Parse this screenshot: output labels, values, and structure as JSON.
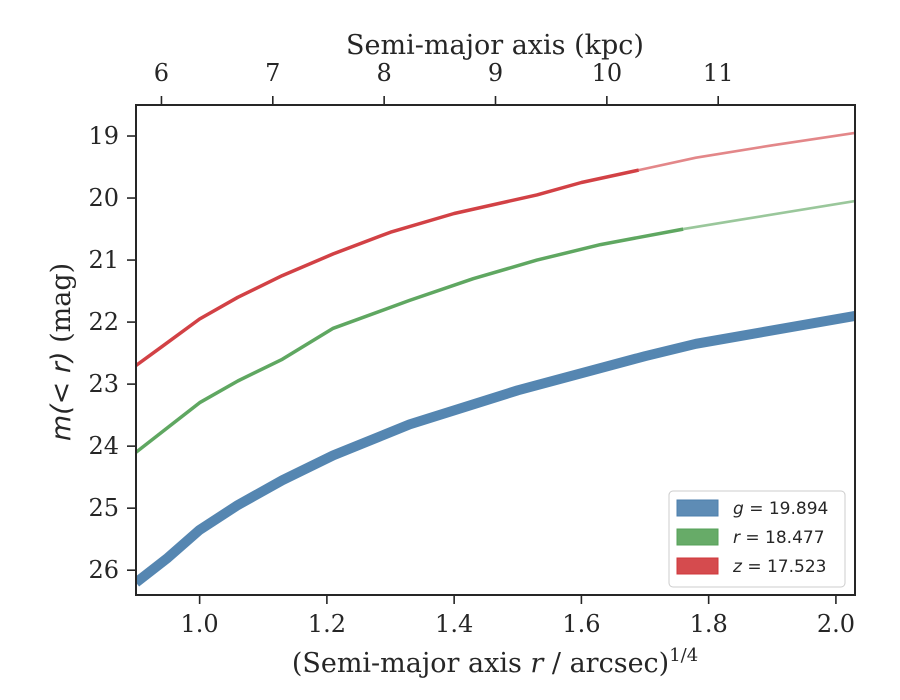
{
  "chart_data": {
    "type": "line",
    "xlabel": "(Semi-major axis r / arcsec)^{1/4}",
    "xlabel_parts": {
      "pre": "(Semi-major axis ",
      "var": "r",
      "post": " / arcsec)",
      "sup": "1/4"
    },
    "ylabel": "m(< r) (mag)",
    "ylabel_parts": {
      "math": "m(< r)",
      "unit": " (mag)"
    },
    "top_xlabel": "Semi-major axis (kpc)",
    "xlim": [
      0.9,
      2.03
    ],
    "ylim": [
      26.4,
      18.5
    ],
    "y_inverted": true,
    "x_ticks": [
      1.0,
      1.2,
      1.4,
      1.6,
      1.8,
      2.0
    ],
    "x_tick_labels": [
      "1.0",
      "1.2",
      "1.4",
      "1.6",
      "1.8",
      "2.0"
    ],
    "y_ticks": [
      19,
      20,
      21,
      22,
      23,
      24,
      25,
      26
    ],
    "y_tick_labels": [
      "19",
      "20",
      "21",
      "22",
      "23",
      "24",
      "25",
      "26"
    ],
    "top_ticks": [
      {
        "label": "6",
        "x": 0.94
      },
      {
        "label": "7",
        "x": 1.115
      },
      {
        "label": "8",
        "x": 1.29
      },
      {
        "label": "9",
        "x": 1.465
      },
      {
        "label": "10",
        "x": 1.64
      },
      {
        "label": "11",
        "x": 1.815
      }
    ],
    "grid": false,
    "legend_position": "bottom-right",
    "series": [
      {
        "name": "g = 19.894",
        "legend_var": "g",
        "legend_value": "19.894",
        "color": "#4c7fad",
        "x": [
          0.9,
          0.95,
          1.0,
          1.06,
          1.13,
          1.21,
          1.33,
          1.5,
          1.7,
          1.78,
          2.03
        ],
        "y": [
          26.2,
          25.8,
          25.35,
          24.95,
          24.55,
          24.15,
          23.65,
          23.1,
          22.55,
          22.35,
          21.9
        ],
        "solid_until": 2.03
      },
      {
        "name": "r = 18.477",
        "legend_var": "r",
        "legend_value": "18.477",
        "color": "#56a258",
        "x": [
          0.9,
          0.95,
          1.0,
          1.06,
          1.13,
          1.21,
          1.33,
          1.43,
          1.53,
          1.63,
          1.76,
          1.85,
          2.03
        ],
        "y": [
          24.1,
          23.7,
          23.3,
          22.95,
          22.6,
          22.1,
          21.65,
          21.3,
          21.0,
          20.75,
          20.5,
          20.35,
          20.05
        ],
        "solid_until": 1.76
      },
      {
        "name": "z = 17.523",
        "legend_var": "z",
        "legend_value": "17.523",
        "color": "#d0373b",
        "x": [
          0.9,
          0.94,
          1.0,
          1.06,
          1.13,
          1.21,
          1.3,
          1.4,
          1.53,
          1.6,
          1.69,
          1.78,
          1.9,
          2.03
        ],
        "y": [
          22.7,
          22.4,
          21.95,
          21.6,
          21.25,
          20.9,
          20.55,
          20.25,
          19.95,
          19.75,
          19.55,
          19.35,
          19.15,
          18.95
        ],
        "solid_until": 1.69
      }
    ]
  }
}
